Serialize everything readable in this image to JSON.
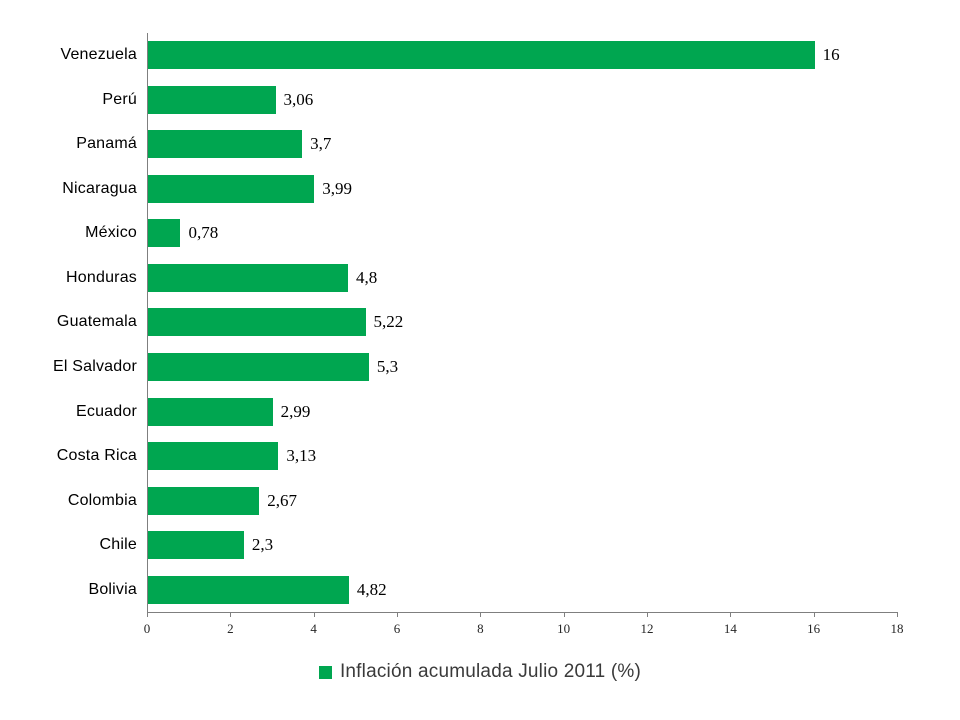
{
  "chart_data": {
    "type": "bar",
    "orientation": "horizontal",
    "title": "",
    "categories": [
      "Venezuela",
      "Perú",
      "Panamá",
      "Nicaragua",
      "México",
      "Honduras",
      "Guatemala",
      "El Salvador",
      "Ecuador",
      "Costa Rica",
      "Colombia",
      "Chile",
      "Bolivia"
    ],
    "values": [
      16,
      3.06,
      3.7,
      3.99,
      0.78,
      4.8,
      5.22,
      5.3,
      2.99,
      3.13,
      2.67,
      2.3,
      4.82
    ],
    "value_labels": [
      "16",
      "3,06",
      "3,7",
      "3,99",
      "0,78",
      "4,8",
      "5,22",
      "5,3",
      "2,99",
      "3,13",
      "2,67",
      "2,3",
      "4,82"
    ],
    "xlim": [
      0,
      18
    ],
    "x_ticks": [
      0,
      2,
      4,
      6,
      8,
      10,
      12,
      14,
      16,
      18
    ],
    "x_tick_labels": [
      "0",
      "2",
      "4",
      "6",
      "8",
      "10",
      "12",
      "14",
      "16",
      "18"
    ],
    "grid": false,
    "legend": "Inflación acumulada Julio 2011 (%)",
    "legend_position": "bottom",
    "bar_color": "#00A650",
    "axis_color": "#7f7f7f",
    "text_color": "#000000"
  }
}
